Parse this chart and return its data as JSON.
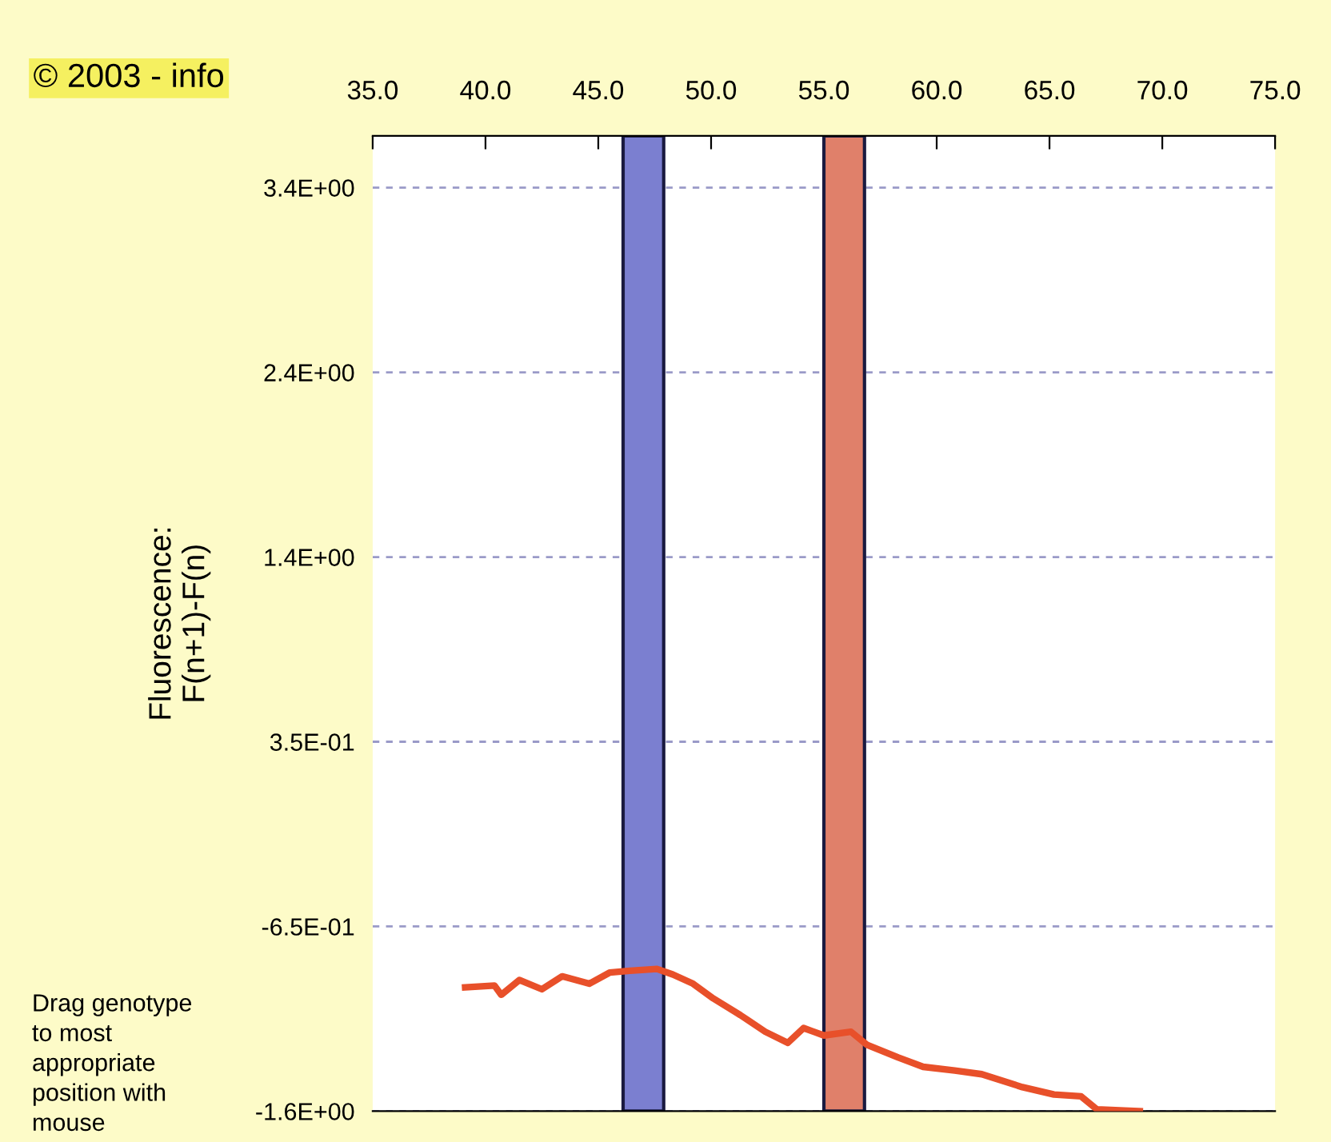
{
  "chart_data": {
    "type": "line",
    "ylabel": "Fluorescence:\nF(n+1)-F(n)",
    "annotations": [
      "© 2003 - info",
      "Drag genotype\nto most\nappropriate\nposition with\nmouse"
    ],
    "x": [
      39.1,
      40.4,
      40.7,
      41.5,
      42.5,
      43.4,
      44.6,
      45.5,
      46.4,
      47.6,
      48.3,
      49.2,
      50.1,
      51.3,
      52.4,
      53.4,
      54.1,
      55.0,
      56.2,
      56.9,
      58.3,
      59.4,
      60.8,
      62.0,
      63.8,
      65.2,
      66.4,
      67.1,
      69.0
    ],
    "series": [
      {
        "color": "#e8502a",
        "values": [
          -0.98,
          -0.97,
          -1.02,
          -0.94,
          -0.99,
          -0.92,
          -0.96,
          -0.9,
          -0.89,
          -0.88,
          -0.91,
          -0.96,
          -1.04,
          -1.13,
          -1.22,
          -1.28,
          -1.2,
          -1.24,
          -1.22,
          -1.29,
          -1.36,
          -1.41,
          -1.43,
          -1.45,
          -1.52,
          -1.56,
          -1.57,
          -1.64,
          -1.65
        ]
      }
    ],
    "bands": [
      {
        "axis": "x",
        "from": 46.1,
        "to": 47.9,
        "color": "#7b7fd0"
      },
      {
        "axis": "x",
        "from": 55.0,
        "to": 56.8,
        "color": "#e0806a"
      }
    ],
    "xlim": [
      35,
      75
    ],
    "xticks": [
      {
        "value": 35,
        "label": "35.0"
      },
      {
        "value": 40,
        "label": "40.0"
      },
      {
        "value": 45,
        "label": "45.0"
      },
      {
        "value": 50,
        "label": "50.0"
      },
      {
        "value": 55,
        "label": "55.0"
      },
      {
        "value": 60,
        "label": "60.0"
      },
      {
        "value": 65,
        "label": "65.0"
      },
      {
        "value": 70,
        "label": "70.0"
      },
      {
        "value": 75,
        "label": "75.0"
      }
    ],
    "ylim": [
      -1.65,
      3.63
    ],
    "yticks": [
      {
        "value": -1.65,
        "label": "-1.6E+00"
      },
      {
        "value": -0.65,
        "label": "-6.5E-01"
      },
      {
        "value": 0.35,
        "label": "3.5E-01"
      },
      {
        "value": 1.35,
        "label": "1.4E+00"
      },
      {
        "value": 2.35,
        "label": "2.4E+00"
      },
      {
        "value": 3.35,
        "label": "3.4E+00"
      }
    ],
    "grid": "y",
    "marker": "none",
    "line_style": "solid"
  }
}
